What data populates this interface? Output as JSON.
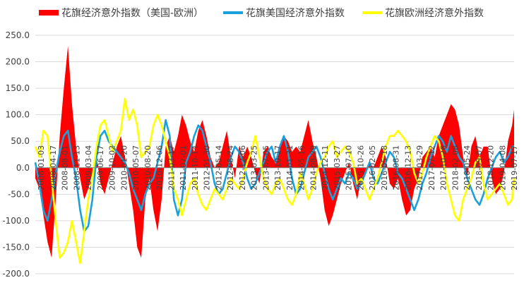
{
  "chart_data": {
    "type": "line",
    "legend_position": "top",
    "ylim": [
      -200,
      250
    ],
    "y_ticks": [
      -200,
      -150,
      -100,
      -50,
      0,
      50,
      100,
      150,
      200,
      250
    ],
    "y_tick_labels": [
      "-200.0",
      "-150.0",
      "-100.0",
      "-50.0",
      "0.0",
      "50.0",
      "100.0",
      "150.0",
      "200.0",
      "250.0"
    ],
    "grid": true,
    "x_ticks": [
      "2008-01-03",
      "2008-04-17",
      "2008-08-01",
      "2008-11-13",
      "2009-03-04",
      "2009-06-17",
      "2009-10-02",
      "2010-01-20",
      "2010-05-07",
      "2010-08-20",
      "2010-12-06",
      "2011-03-17",
      "2011-07-01",
      "2011-10-14",
      "2012-01-30",
      "2012-05-14",
      "2012-08-24",
      "2012-12-06",
      "2013-03-25",
      "2013-07-05",
      "2013-10-17",
      "2014-01-31",
      "2014-05-16",
      "2014-08-29",
      "2014-12-11",
      "2015-03-27",
      "2015-07-10",
      "2015-10-26",
      "2016-02-05",
      "2016-05-18",
      "2016-08-31",
      "2016-12-13",
      "2017-03-29",
      "2017-07-12",
      "2017-10-26",
      "2018-02-08",
      "2018-05-24",
      "2018-09-07",
      "2018-12-20",
      "2019-04-08",
      "2019-07-17"
    ],
    "series": [
      {
        "name": "花旗经济意外指数（美国-欧洲）",
        "kind": "area",
        "color": "#ff0000",
        "x": [
          2008.0,
          2008.1,
          2008.2,
          2008.3,
          2008.4,
          2008.5,
          2008.6,
          2008.7,
          2008.8,
          2008.9,
          2009.0,
          2009.1,
          2009.2,
          2009.3,
          2009.4,
          2009.5,
          2009.6,
          2009.7,
          2009.8,
          2009.9,
          2010.0,
          2010.1,
          2010.2,
          2010.3,
          2010.4,
          2010.5,
          2010.6,
          2010.7,
          2010.8,
          2010.9,
          2011.0,
          2011.1,
          2011.2,
          2011.3,
          2011.4,
          2011.5,
          2011.6,
          2011.7,
          2011.8,
          2011.9,
          2012.0,
          2012.1,
          2012.2,
          2012.3,
          2012.4,
          2012.5,
          2012.6,
          2012.7,
          2012.8,
          2012.9,
          2013.0,
          2013.1,
          2013.2,
          2013.3,
          2013.4,
          2013.5,
          2013.6,
          2013.7,
          2013.8,
          2013.9,
          2014.0,
          2014.1,
          2014.2,
          2014.3,
          2014.4,
          2014.5,
          2014.6,
          2014.7,
          2014.8,
          2014.9,
          2015.0,
          2015.1,
          2015.2,
          2015.3,
          2015.4,
          2015.5,
          2015.6,
          2015.7,
          2015.8,
          2015.9,
          2016.0,
          2016.1,
          2016.2,
          2016.3,
          2016.4,
          2016.5,
          2016.6,
          2016.7,
          2016.8,
          2016.9,
          2017.0,
          2017.1,
          2017.2,
          2017.3,
          2017.4,
          2017.5,
          2017.6,
          2017.7,
          2017.8,
          2017.9,
          2018.0,
          2018.1,
          2018.2,
          2018.3,
          2018.4,
          2018.5,
          2018.6,
          2018.7,
          2018.8,
          2018.9,
          2019.0,
          2019.1,
          2019.2,
          2019.3,
          2019.4,
          2019.5,
          2019.6,
          2019.7,
          2019.75
        ],
        "y": [
          -20,
          -40,
          -90,
          -140,
          -170,
          -60,
          60,
          150,
          230,
          120,
          40,
          -20,
          -60,
          -40,
          -10,
          20,
          -30,
          -50,
          -20,
          10,
          40,
          60,
          20,
          -30,
          -80,
          -150,
          -170,
          -60,
          -20,
          -80,
          -120,
          -60,
          40,
          60,
          30,
          60,
          100,
          80,
          50,
          30,
          70,
          90,
          60,
          20,
          0,
          10,
          40,
          70,
          20,
          -20,
          40,
          20,
          40,
          20,
          -10,
          -30,
          30,
          40,
          20,
          10,
          40,
          60,
          50,
          30,
          40,
          30,
          60,
          90,
          50,
          20,
          -20,
          -80,
          -110,
          -90,
          -60,
          -30,
          -10,
          10,
          -30,
          -60,
          -20,
          -10,
          10,
          0,
          20,
          40,
          20,
          -30,
          -40,
          -20,
          -60,
          -90,
          -80,
          -40,
          -20,
          20,
          30,
          40,
          20,
          60,
          80,
          100,
          120,
          110,
          80,
          20,
          -20,
          40,
          60,
          20,
          40,
          40,
          -20,
          -50,
          -40,
          -10,
          50,
          80,
          110
        ]
      },
      {
        "name": "花旗美国经济意外指数",
        "kind": "line",
        "color": "#1aa0dc",
        "x": [
          2008.0,
          2008.1,
          2008.2,
          2008.3,
          2008.4,
          2008.5,
          2008.6,
          2008.7,
          2008.8,
          2008.9,
          2009.0,
          2009.1,
          2009.2,
          2009.3,
          2009.4,
          2009.5,
          2009.6,
          2009.7,
          2009.8,
          2009.9,
          2010.0,
          2010.1,
          2010.2,
          2010.3,
          2010.4,
          2010.5,
          2010.6,
          2010.7,
          2010.8,
          2010.9,
          2011.0,
          2011.1,
          2011.2,
          2011.3,
          2011.4,
          2011.5,
          2011.6,
          2011.7,
          2011.8,
          2011.9,
          2012.0,
          2012.1,
          2012.2,
          2012.3,
          2012.4,
          2012.5,
          2012.6,
          2012.7,
          2012.8,
          2012.9,
          2013.0,
          2013.1,
          2013.2,
          2013.3,
          2013.4,
          2013.5,
          2013.6,
          2013.7,
          2013.8,
          2013.9,
          2014.0,
          2014.1,
          2014.2,
          2014.3,
          2014.4,
          2014.5,
          2014.6,
          2014.7,
          2014.8,
          2014.9,
          2015.0,
          2015.1,
          2015.2,
          2015.3,
          2015.4,
          2015.5,
          2015.6,
          2015.7,
          2015.8,
          2015.9,
          2016.0,
          2016.1,
          2016.2,
          2016.3,
          2016.4,
          2016.5,
          2016.6,
          2016.7,
          2016.8,
          2016.9,
          2017.0,
          2017.1,
          2017.2,
          2017.3,
          2017.4,
          2017.5,
          2017.6,
          2017.7,
          2017.8,
          2017.9,
          2018.0,
          2018.1,
          2018.2,
          2018.3,
          2018.4,
          2018.5,
          2018.6,
          2018.7,
          2018.8,
          2018.9,
          2019.0,
          2019.1,
          2019.2,
          2019.3,
          2019.4,
          2019.5,
          2019.6,
          2019.7,
          2019.75
        ],
        "y": [
          10,
          -30,
          -80,
          -100,
          -60,
          -10,
          30,
          60,
          70,
          20,
          -20,
          -80,
          -120,
          -110,
          -60,
          20,
          60,
          70,
          50,
          40,
          30,
          20,
          10,
          -10,
          -40,
          -60,
          -80,
          -50,
          -30,
          -20,
          10,
          40,
          90,
          60,
          -60,
          -90,
          -60,
          10,
          30,
          60,
          80,
          70,
          40,
          10,
          -30,
          -50,
          -40,
          -10,
          20,
          40,
          30,
          10,
          -20,
          -40,
          -30,
          -10,
          10,
          30,
          40,
          10,
          40,
          60,
          30,
          -20,
          -50,
          -40,
          -10,
          20,
          30,
          40,
          20,
          -10,
          -40,
          -60,
          -40,
          -20,
          -30,
          -10,
          -20,
          -40,
          -30,
          -10,
          10,
          -20,
          -30,
          -10,
          10,
          30,
          20,
          -10,
          -20,
          -40,
          -60,
          -80,
          -60,
          -30,
          -10,
          20,
          40,
          60,
          50,
          30,
          60,
          40,
          20,
          10,
          -20,
          -40,
          -60,
          -70,
          -50,
          -20,
          0,
          20,
          30,
          10,
          20,
          40,
          40
        ]
      },
      {
        "name": "花旗欧洲经济意外指数",
        "kind": "line",
        "color": "#ffff00",
        "x": [
          2008.0,
          2008.1,
          2008.2,
          2008.3,
          2008.4,
          2008.5,
          2008.6,
          2008.7,
          2008.8,
          2008.9,
          2009.0,
          2009.1,
          2009.2,
          2009.3,
          2009.4,
          2009.5,
          2009.6,
          2009.7,
          2009.8,
          2009.9,
          2010.0,
          2010.1,
          2010.2,
          2010.3,
          2010.4,
          2010.5,
          2010.6,
          2010.7,
          2010.8,
          2010.9,
          2011.0,
          2011.1,
          2011.2,
          2011.3,
          2011.4,
          2011.5,
          2011.6,
          2011.7,
          2011.8,
          2011.9,
          2012.0,
          2012.1,
          2012.2,
          2012.3,
          2012.4,
          2012.5,
          2012.6,
          2012.7,
          2012.8,
          2012.9,
          2013.0,
          2013.1,
          2013.2,
          2013.3,
          2013.4,
          2013.5,
          2013.6,
          2013.7,
          2013.8,
          2013.9,
          2014.0,
          2014.1,
          2014.2,
          2014.3,
          2014.4,
          2014.5,
          2014.6,
          2014.7,
          2014.8,
          2014.9,
          2015.0,
          2015.1,
          2015.2,
          2015.3,
          2015.4,
          2015.5,
          2015.6,
          2015.7,
          2015.8,
          2015.9,
          2016.0,
          2016.1,
          2016.2,
          2016.3,
          2016.4,
          2016.5,
          2016.6,
          2016.7,
          2016.8,
          2016.9,
          2017.0,
          2017.1,
          2017.2,
          2017.3,
          2017.4,
          2017.5,
          2017.6,
          2017.7,
          2017.8,
          2017.9,
          2018.0,
          2018.1,
          2018.2,
          2018.3,
          2018.4,
          2018.5,
          2018.6,
          2018.7,
          2018.8,
          2018.9,
          2019.0,
          2019.1,
          2019.2,
          2019.3,
          2019.4,
          2019.5,
          2019.6,
          2019.7,
          2019.75
        ],
        "y": [
          40,
          20,
          70,
          60,
          -20,
          -100,
          -170,
          -160,
          -140,
          -100,
          -140,
          -180,
          -120,
          -60,
          -20,
          40,
          80,
          90,
          60,
          30,
          50,
          70,
          130,
          90,
          110,
          80,
          20,
          30,
          40,
          80,
          100,
          80,
          50,
          20,
          -40,
          -60,
          -90,
          -60,
          -30,
          -20,
          -50,
          -70,
          -80,
          -60,
          -40,
          -50,
          -60,
          -40,
          -20,
          -30,
          -40,
          -20,
          10,
          30,
          60,
          20,
          -20,
          -40,
          -50,
          -30,
          -20,
          -40,
          -60,
          -70,
          -50,
          -10,
          -30,
          -60,
          -40,
          -10,
          10,
          20,
          40,
          50,
          20,
          30,
          40,
          30,
          10,
          -30,
          -20,
          -40,
          -60,
          -40,
          -20,
          10,
          40,
          60,
          60,
          70,
          60,
          50,
          30,
          -10,
          -30,
          -10,
          20,
          40,
          60,
          50,
          20,
          -30,
          -60,
          -90,
          -100,
          -60,
          -40,
          -20,
          10,
          20,
          -30,
          -60,
          -50,
          -40,
          -30,
          -50,
          -70,
          -60,
          -20
        ]
      }
    ]
  }
}
